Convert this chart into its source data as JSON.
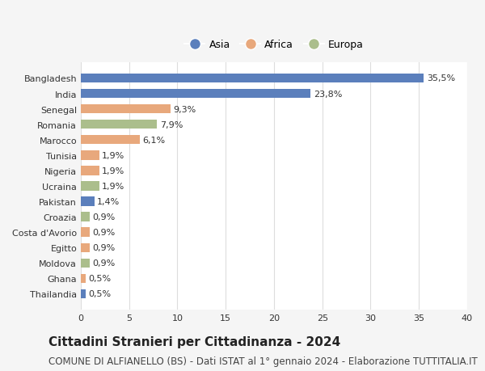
{
  "categories": [
    "Bangladesh",
    "India",
    "Senegal",
    "Romania",
    "Marocco",
    "Tunisia",
    "Nigeria",
    "Ucraina",
    "Pakistan",
    "Croazia",
    "Costa d'Avorio",
    "Egitto",
    "Moldova",
    "Ghana",
    "Thailandia"
  ],
  "values": [
    35.5,
    23.8,
    9.3,
    7.9,
    6.1,
    1.9,
    1.9,
    1.9,
    1.4,
    0.9,
    0.9,
    0.9,
    0.9,
    0.5,
    0.5
  ],
  "labels": [
    "35,5%",
    "23,8%",
    "9,3%",
    "7,9%",
    "6,1%",
    "1,9%",
    "1,9%",
    "1,9%",
    "1,4%",
    "0,9%",
    "0,9%",
    "0,9%",
    "0,9%",
    "0,5%",
    "0,5%"
  ],
  "colors": [
    "#5b7fbc",
    "#5b7fbc",
    "#e8a87c",
    "#abbe8c",
    "#e8a87c",
    "#e8a87c",
    "#e8a87c",
    "#abbe8c",
    "#5b7fbc",
    "#abbe8c",
    "#e8a87c",
    "#e8a87c",
    "#abbe8c",
    "#e8a87c",
    "#5b7fbc"
  ],
  "legend_labels": [
    "Asia",
    "Africa",
    "Europa"
  ],
  "legend_colors": [
    "#5b7fbc",
    "#e8a87c",
    "#abbe8c"
  ],
  "title": "Cittadini Stranieri per Cittadinanza - 2024",
  "subtitle": "COMUNE DI ALFIANELLO (BS) - Dati ISTAT al 1° gennaio 2024 - Elaborazione TUTTITALIA.IT",
  "xlim": [
    0,
    40
  ],
  "xticks": [
    0,
    5,
    10,
    15,
    20,
    25,
    30,
    35,
    40
  ],
  "background_color": "#f5f5f5",
  "plot_bg_color": "#ffffff",
  "grid_color": "#dddddd",
  "bar_height": 0.6,
  "title_fontsize": 11,
  "subtitle_fontsize": 8.5,
  "label_fontsize": 8,
  "tick_fontsize": 8,
  "legend_fontsize": 9
}
